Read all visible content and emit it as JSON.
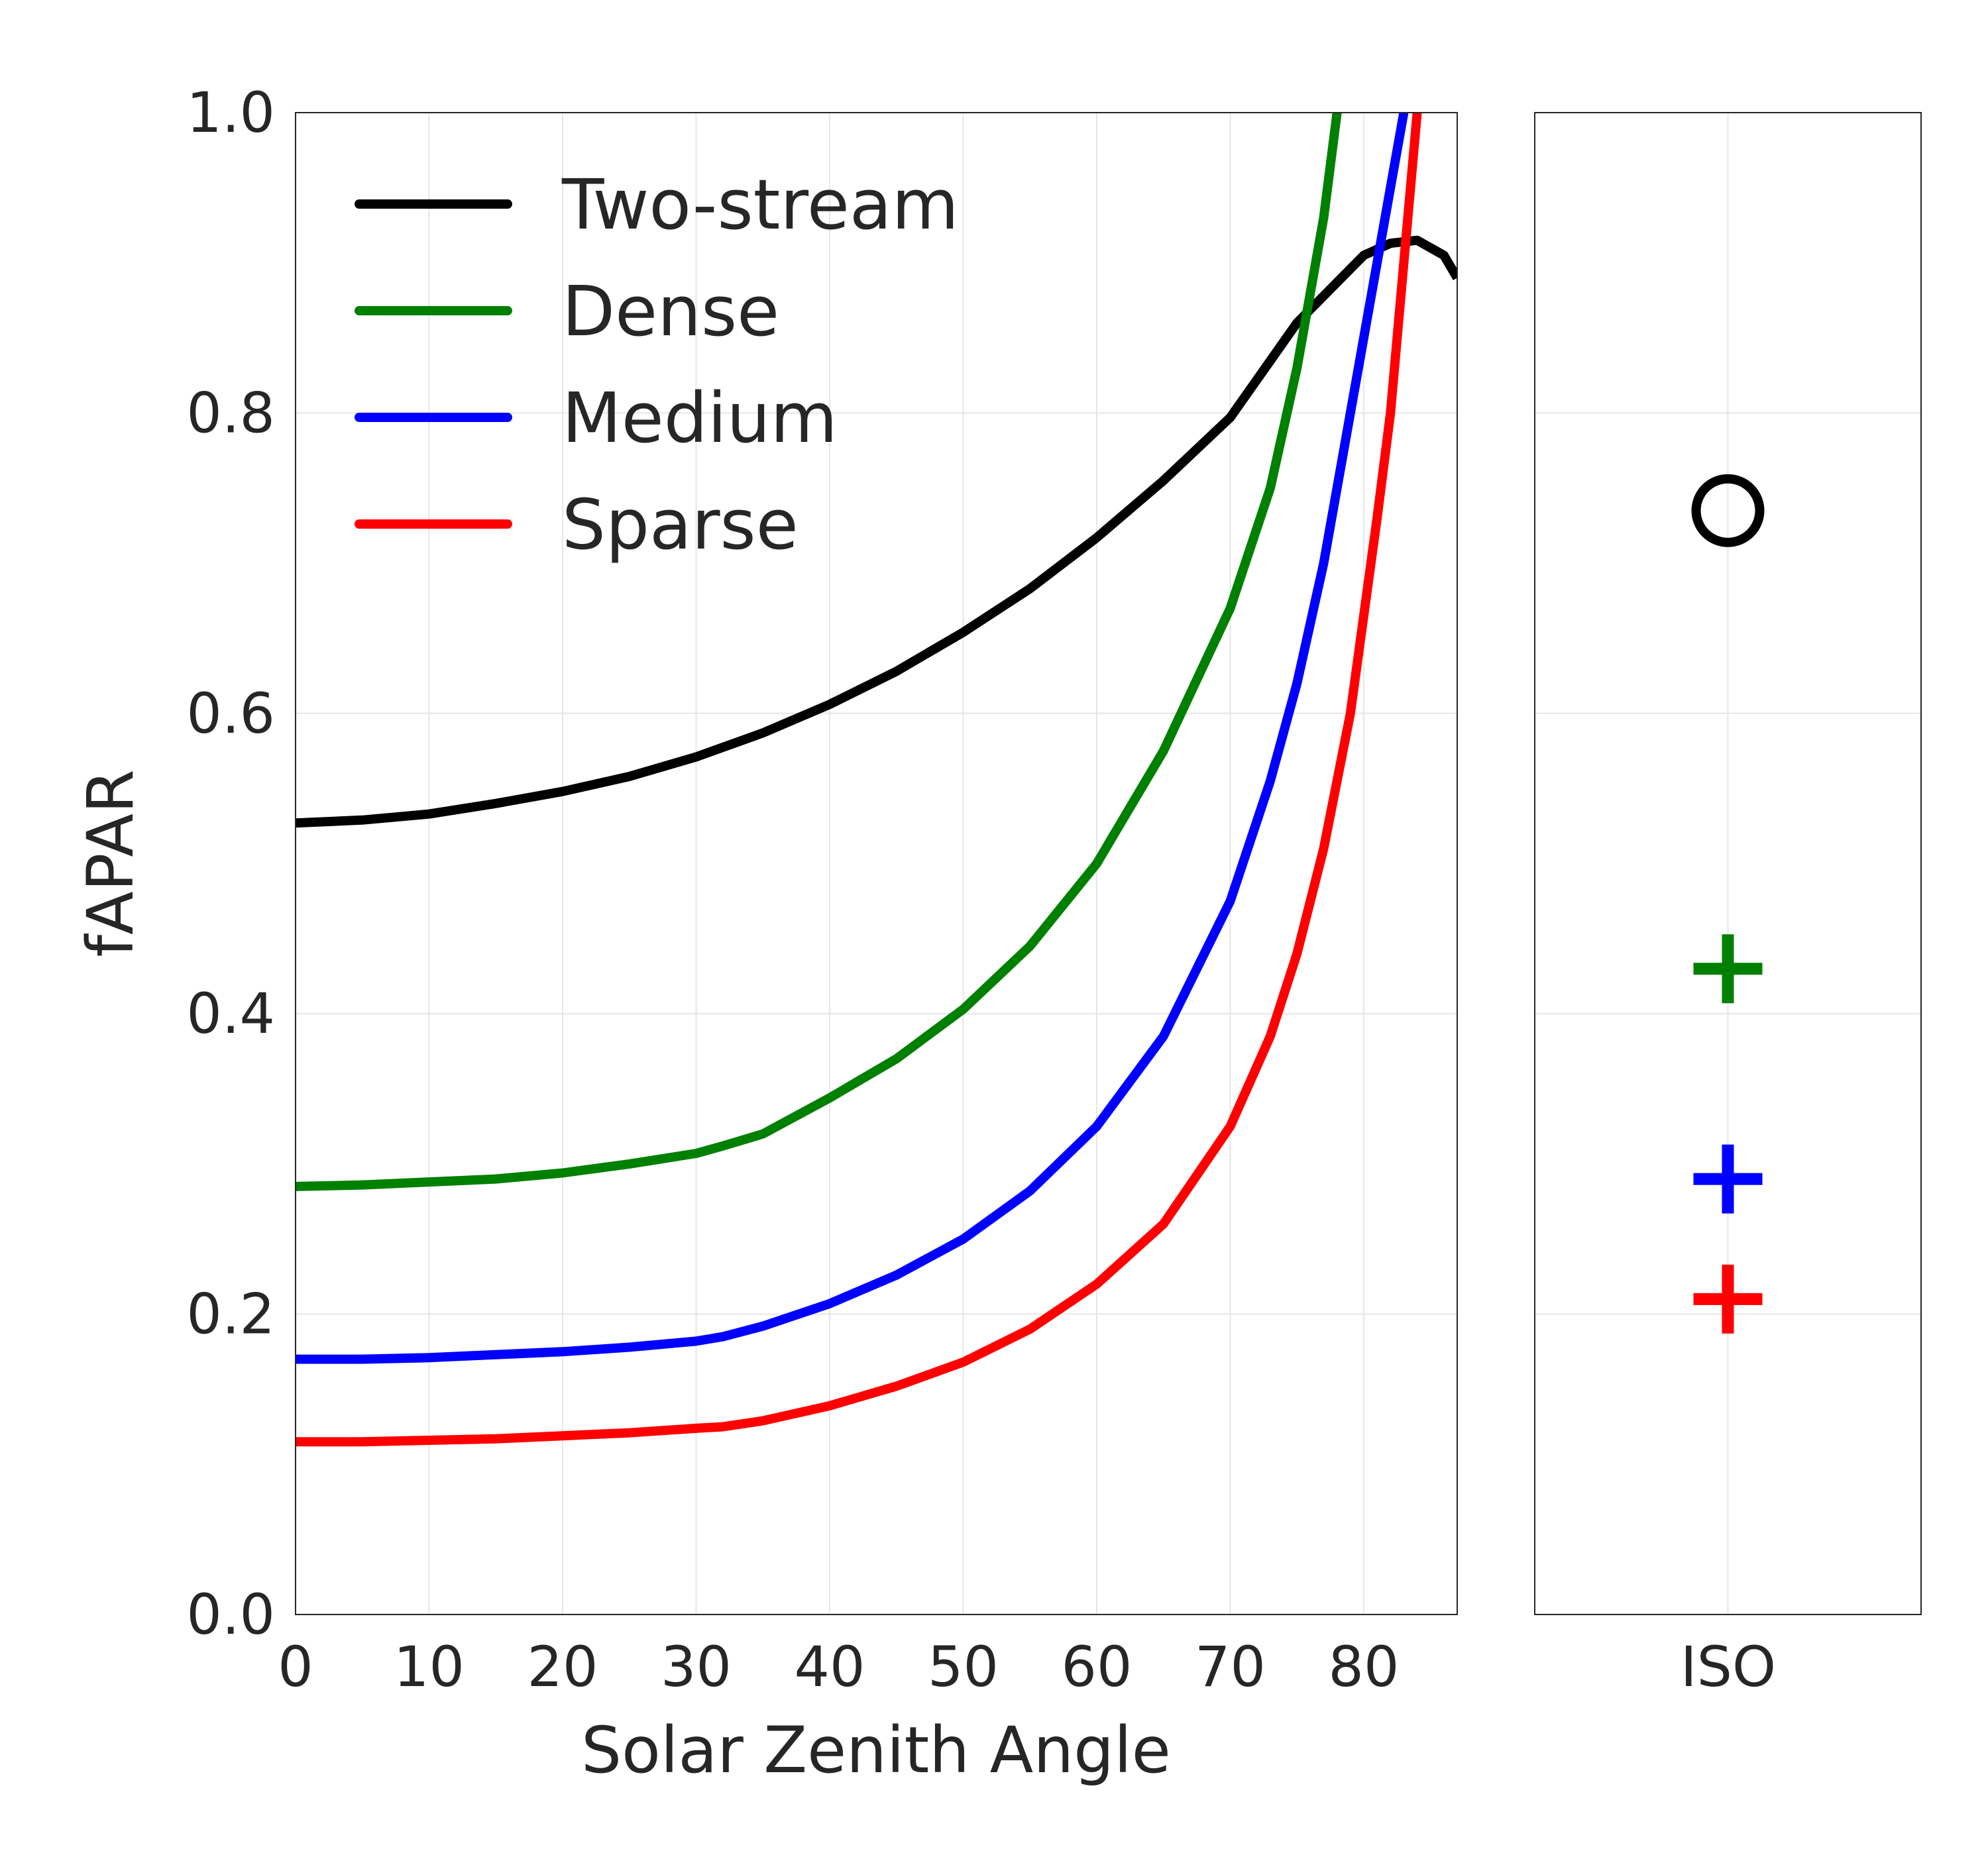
{
  "chart_data": [
    {
      "type": "line",
      "xlabel": "Solar Zenith Angle",
      "ylabel": "fAPAR",
      "xlim": [
        0,
        87
      ],
      "ylim": [
        0,
        1.0
      ],
      "xticks": [
        0,
        10,
        20,
        30,
        40,
        50,
        60,
        70,
        80
      ],
      "xtick_labels": [
        "0",
        "10",
        "20",
        "30",
        "40",
        "50",
        "60",
        "70",
        "80"
      ],
      "yticks": [
        0.0,
        0.2,
        0.4,
        0.6,
        0.8,
        1.0
      ],
      "ytick_labels": [
        "0.0",
        "0.2",
        "0.4",
        "0.6",
        "0.8",
        "1.0"
      ],
      "grid": true,
      "legend_position": "top-left",
      "series": [
        {
          "name": "Two-stream",
          "color": "#000000",
          "x": [
            0,
            5,
            10,
            15,
            20,
            25,
            30,
            35,
            40,
            45,
            50,
            55,
            60,
            65,
            70,
            75,
            78,
            80,
            82,
            84,
            86,
            87
          ],
          "y": [
            0.527,
            0.529,
            0.533,
            0.54,
            0.548,
            0.558,
            0.571,
            0.587,
            0.606,
            0.628,
            0.654,
            0.683,
            0.717,
            0.755,
            0.797,
            0.86,
            0.887,
            0.905,
            0.913,
            0.915,
            0.905,
            0.89
          ]
        },
        {
          "name": "Dense",
          "color": "#008000",
          "x": [
            0,
            5,
            10,
            15,
            20,
            25,
            30,
            32,
            35,
            40,
            45,
            50,
            55,
            60,
            65,
            70,
            73,
            75,
            77,
            78
          ],
          "y": [
            0.285,
            0.286,
            0.288,
            0.29,
            0.294,
            0.3,
            0.307,
            0.312,
            0.32,
            0.344,
            0.37,
            0.403,
            0.445,
            0.5,
            0.575,
            0.67,
            0.75,
            0.83,
            0.93,
            1.0
          ]
        },
        {
          "name": "Medium",
          "color": "#0000ff",
          "x": [
            0,
            5,
            10,
            15,
            20,
            25,
            30,
            32,
            35,
            40,
            45,
            50,
            55,
            60,
            65,
            70,
            73,
            75,
            77,
            79,
            81,
            83
          ],
          "y": [
            0.17,
            0.17,
            0.171,
            0.173,
            0.175,
            0.178,
            0.182,
            0.185,
            0.192,
            0.207,
            0.226,
            0.25,
            0.282,
            0.325,
            0.385,
            0.475,
            0.555,
            0.62,
            0.7,
            0.8,
            0.9,
            1.0
          ]
        },
        {
          "name": "Sparse",
          "color": "#ff0000",
          "x": [
            0,
            5,
            10,
            15,
            20,
            25,
            30,
            32,
            35,
            40,
            45,
            50,
            55,
            60,
            65,
            70,
            73,
            75,
            77,
            79,
            81,
            82,
            83,
            84
          ],
          "y": [
            0.115,
            0.115,
            0.116,
            0.117,
            0.119,
            0.121,
            0.124,
            0.125,
            0.129,
            0.139,
            0.152,
            0.168,
            0.19,
            0.22,
            0.26,
            0.325,
            0.385,
            0.44,
            0.51,
            0.6,
            0.73,
            0.8,
            0.9,
            1.0
          ]
        }
      ]
    },
    {
      "type": "scatter",
      "xtick_labels": [
        "ISO"
      ],
      "ylim": [
        0,
        1.0
      ],
      "grid": true,
      "points": [
        {
          "label": "Two-stream",
          "y": 0.735,
          "marker": "circle",
          "color": "#000000"
        },
        {
          "label": "Dense",
          "y": 0.43,
          "marker": "plus",
          "color": "#008000"
        },
        {
          "label": "Medium",
          "y": 0.29,
          "marker": "plus",
          "color": "#0000ff"
        },
        {
          "label": "Sparse",
          "y": 0.21,
          "marker": "plus",
          "color": "#ff0000"
        }
      ]
    }
  ]
}
